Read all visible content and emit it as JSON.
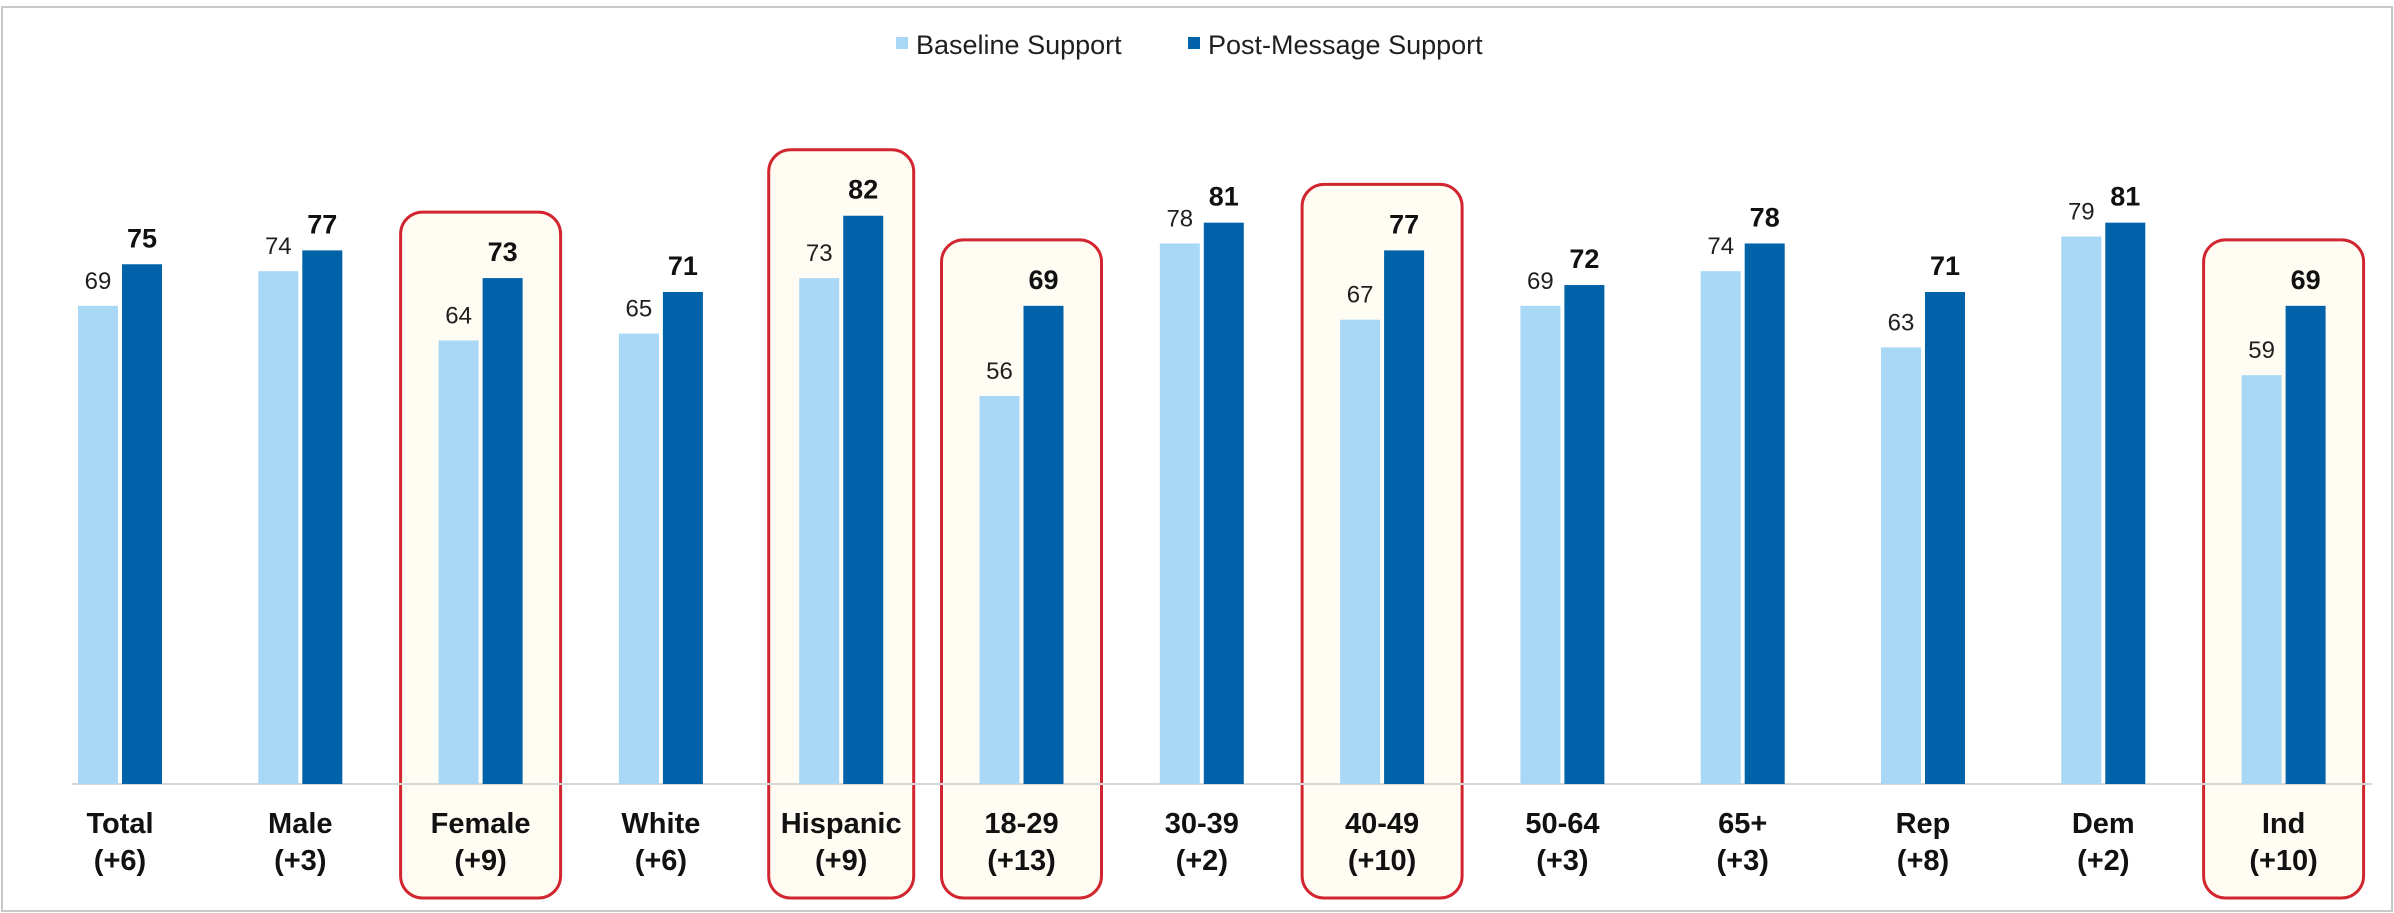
{
  "chart_data": {
    "type": "bar",
    "categories": [
      "Total",
      "Male",
      "Female",
      "White",
      "Hispanic",
      "18-29",
      "30-39",
      "40-49",
      "50-64",
      "65+",
      "Rep",
      "Dem",
      "Ind"
    ],
    "category_changes": [
      "(+6)",
      "(+3)",
      "(+9)",
      "(+6)",
      "(+9)",
      "(+13)",
      "(+2)",
      "(+10)",
      "(+3)",
      "(+3)",
      "(+8)",
      "(+2)",
      "(+10)"
    ],
    "series": [
      {
        "name": "Baseline Support",
        "color": "#a9d8f6",
        "values": [
          69,
          74,
          64,
          65,
          73,
          56,
          78,
          67,
          69,
          74,
          63,
          79,
          59
        ]
      },
      {
        "name": "Post-Message Support",
        "color": "#0062a8",
        "values": [
          75,
          77,
          73,
          71,
          82,
          69,
          81,
          77,
          72,
          78,
          71,
          81,
          69
        ]
      }
    ],
    "highlighted_categories": [
      "Female",
      "Hispanic",
      "18-29",
      "40-49",
      "Ind"
    ],
    "highlight_color": "#d12630",
    "highlight_fill": "#fffdf3",
    "legend_position": "top-center",
    "ylim": [
      0,
      100
    ],
    "grid": false,
    "title": "",
    "xlabel": "",
    "ylabel": ""
  }
}
